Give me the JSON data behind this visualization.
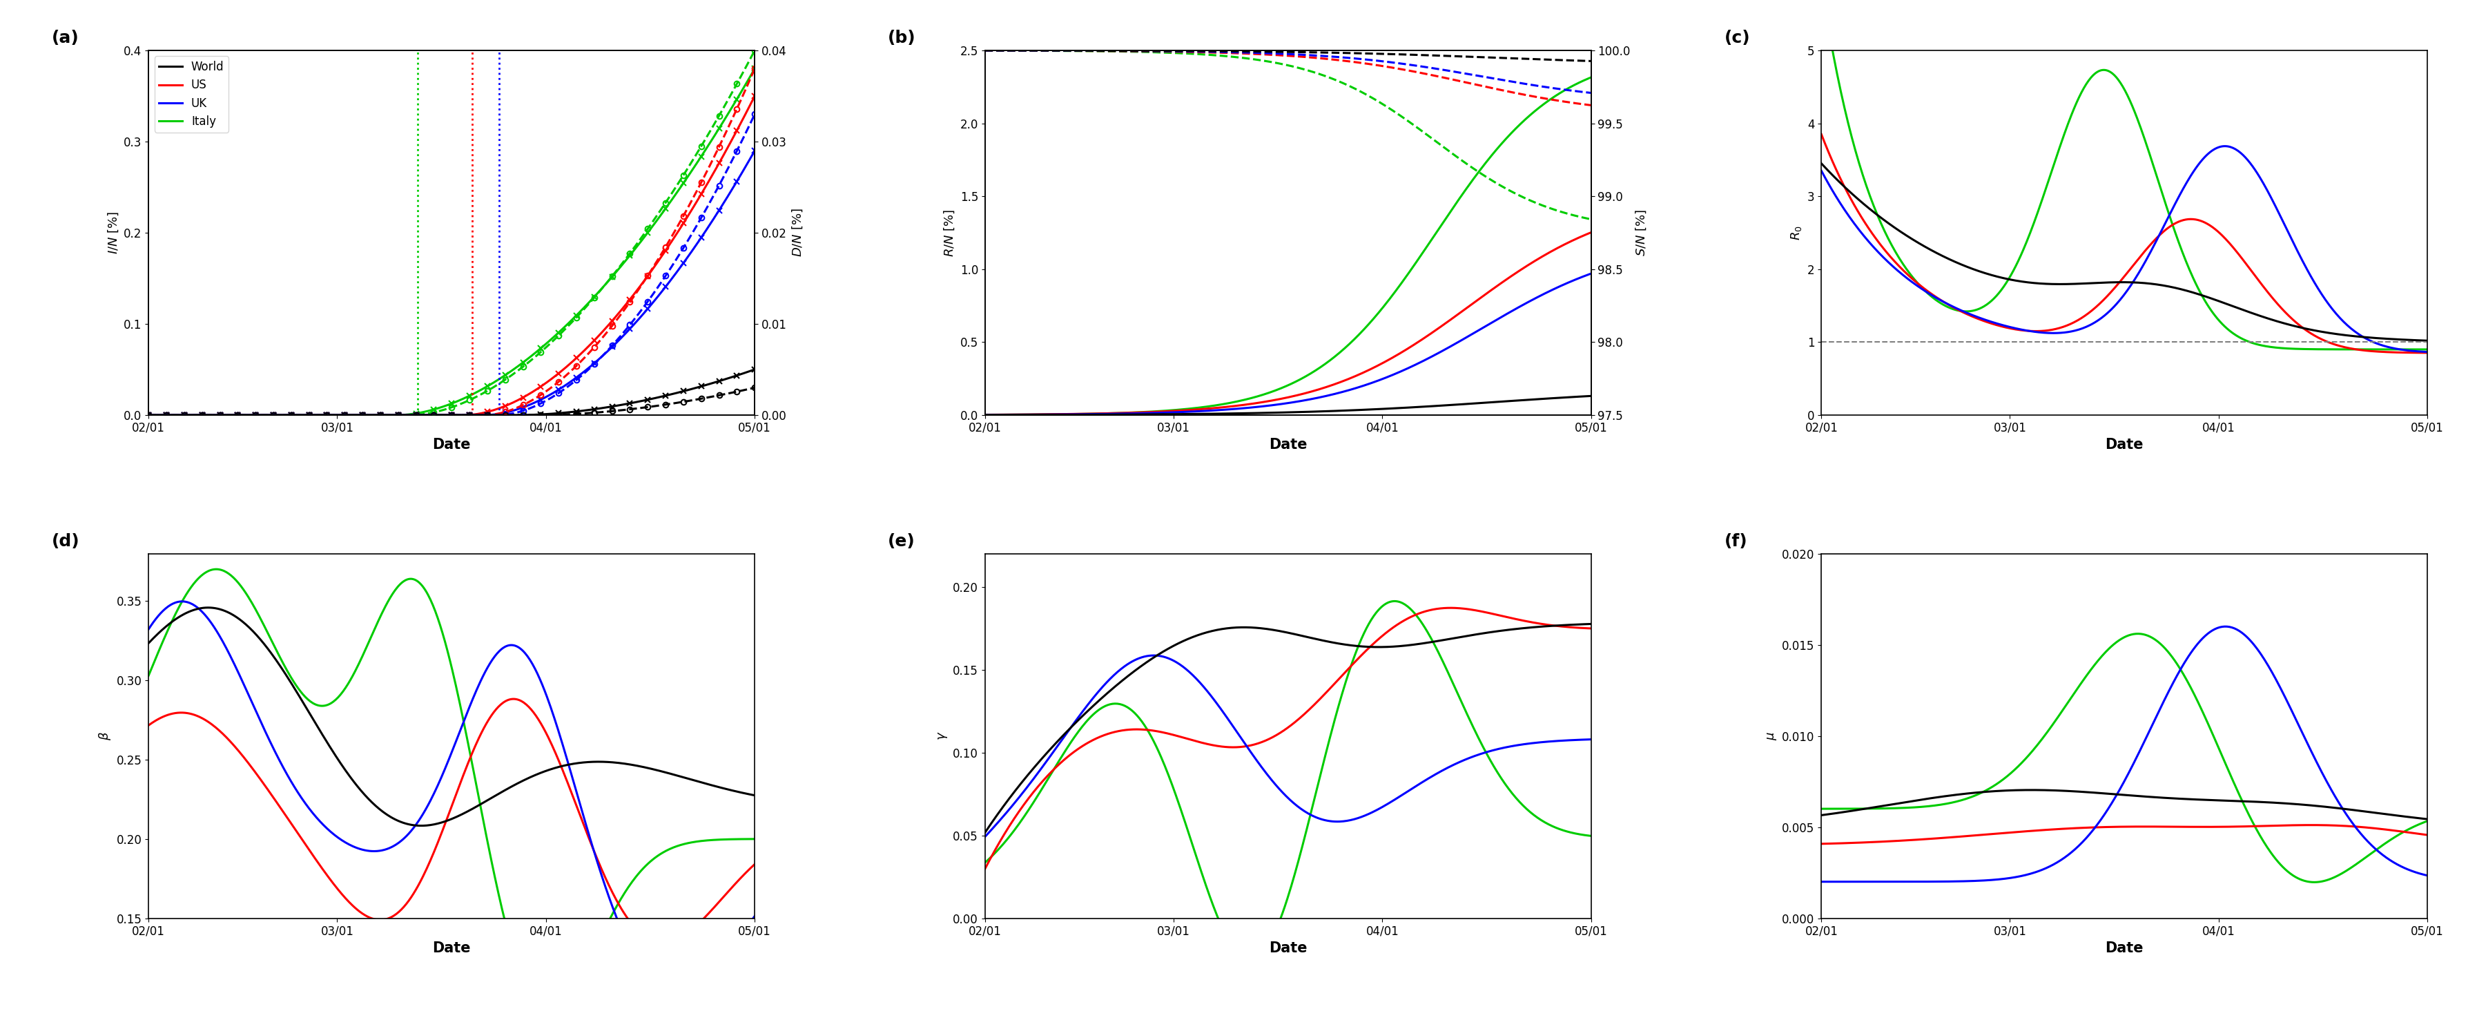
{
  "colors": {
    "world": "#000000",
    "us": "#ff0000",
    "uk": "#0000ff",
    "italy": "#00cc00"
  },
  "date_ticks": [
    0,
    28,
    59,
    90
  ],
  "date_labels": [
    "02/01",
    "03/01",
    "04/01",
    "05/01"
  ],
  "lockdown_italy": 40,
  "lockdown_us": 48,
  "lockdown_uk": 52,
  "legend_labels": [
    "World",
    "US",
    "UK",
    "Italy"
  ]
}
